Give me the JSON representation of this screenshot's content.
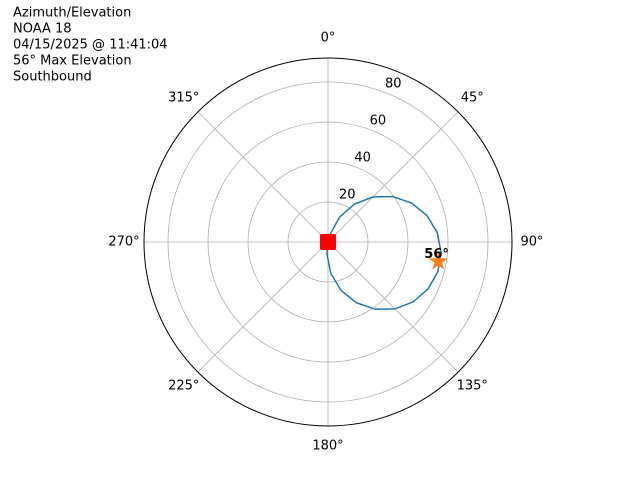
{
  "chart_data": {
    "type": "polar",
    "title_lines": [
      "Azimuth/Elevation",
      "NOAA 18",
      "04/15/2025 @ 11:41:04",
      "56° Max Elevation",
      "Southbound"
    ],
    "theta_zero": "top",
    "theta_direction": "clockwise",
    "thetaticks": [
      {
        "value": 0,
        "label": "0°"
      },
      {
        "value": 45,
        "label": "45°"
      },
      {
        "value": 90,
        "label": "90°"
      },
      {
        "value": 135,
        "label": "135°"
      },
      {
        "value": 180,
        "label": "180°"
      },
      {
        "value": 225,
        "label": "225°"
      },
      {
        "value": 270,
        "label": "270°"
      },
      {
        "value": 315,
        "label": "315°"
      }
    ],
    "rlim": [
      0,
      92
    ],
    "rticks": [
      20,
      40,
      60,
      80
    ],
    "grid": true,
    "series": [
      {
        "color": "#1f77b4",
        "theta": [
          11,
          15,
          25,
          35,
          45,
          55,
          65,
          75,
          85,
          95,
          105,
          115,
          125,
          135,
          145,
          155,
          165,
          175,
          185,
          191
        ],
        "r": [
          0,
          4.0,
          13.8,
          23.2,
          31.9,
          39.6,
          46.1,
          51.2,
          54.8,
          56.7,
          56.9,
          55.3,
          52.1,
          47.3,
          41.0,
          33.5,
          25.0,
          15.7,
          6.0,
          0
        ]
      }
    ],
    "max_point": {
      "theta": 100,
      "r": 56,
      "label": "56°",
      "color": "#ff7f0e"
    },
    "start_point": {
      "theta": 11,
      "r": 0,
      "color": "#2ca02c"
    },
    "end_point": {
      "theta": 191,
      "r": 0,
      "color": "#ff0000"
    }
  }
}
